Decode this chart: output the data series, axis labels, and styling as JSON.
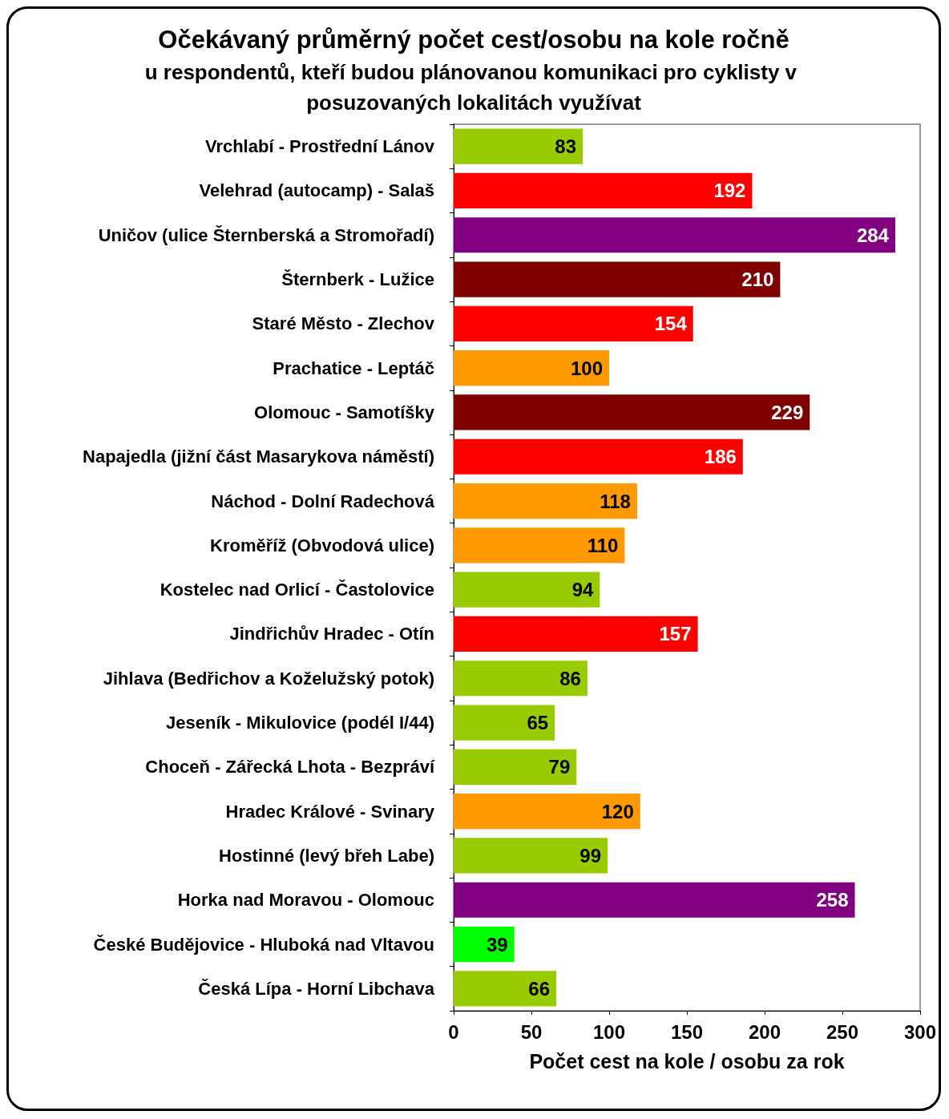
{
  "chart_data": {
    "type": "bar",
    "orientation": "horizontal",
    "title": "Očekávaný průměrný počet cest/osobu na kole ročně",
    "subtitle": "u respondentů, kteří budou plánovanou komunikaci pro cyklisty v posuzovaných lokalitách využívat",
    "xlabel": "Počet cest na kole / osobu za rok",
    "categories": [
      "Vrchlabí - Prostřední Lánov",
      "Velehrad (autocamp) - Salaš",
      "Uničov (ulice Šternberská a Stromořadí)",
      "Šternberk - Lužice",
      "Staré Město - Zlechov",
      "Prachatice - Leptáč",
      "Olomouc - Samotíšky",
      "Napajedla (jižní část Masarykova náměstí)",
      "Náchod - Dolní Radechová",
      "Kroměříž (Obvodová ulice)",
      "Kostelec nad Orlicí - Častolovice",
      "Jindřichův Hradec - Otín",
      "Jihlava (Bedřichov a Koželužský potok)",
      "Jeseník - Mikulovice (podél I/44)",
      "Choceň - Zářecká Lhota - Bezpráví",
      "Hradec Králové - Svinary",
      "Hostinné (levý břeh Labe)",
      "Horka nad Moravou - Olomouc",
      "České Budějovice - Hluboká nad Vltavou",
      "Česká Lípa - Horní Libchava"
    ],
    "values": [
      83,
      192,
      284,
      210,
      154,
      100,
      229,
      186,
      118,
      110,
      94,
      157,
      86,
      65,
      79,
      120,
      99,
      258,
      39,
      66
    ],
    "colors": [
      "#99cc00",
      "#ff0000",
      "#800080",
      "#800000",
      "#ff0000",
      "#ff9900",
      "#800000",
      "#ff0000",
      "#ff9900",
      "#ff9900",
      "#99cc00",
      "#ff0000",
      "#99cc00",
      "#99cc00",
      "#99cc00",
      "#ff9900",
      "#99cc00",
      "#800080",
      "#00ff00",
      "#99cc00"
    ],
    "xlim": [
      0,
      300
    ],
    "xticks": [
      0,
      50,
      100,
      150,
      200,
      250,
      300
    ],
    "data_labels": true,
    "grid": false
  }
}
